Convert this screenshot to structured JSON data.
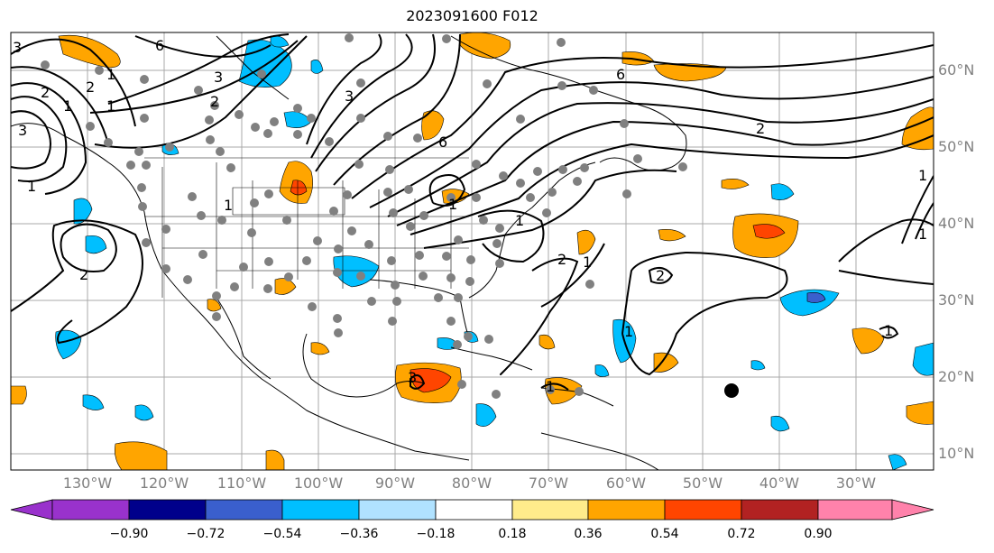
{
  "title": "2023091600 F012",
  "longitude_labels": [
    "130°W",
    "120°W",
    "110°W",
    "100°W",
    "90°W",
    "80°W",
    "70°W",
    "60°W",
    "50°W",
    "40°W",
    "30°W"
  ],
  "latitude_labels": [
    "60°N",
    "50°N",
    "40°N",
    "30°N",
    "20°N",
    "10°N"
  ],
  "colorbar": {
    "tick_labels": [
      "−0.90",
      "−0.72",
      "−0.54",
      "−0.36",
      "−0.18",
      "0.18",
      "0.36",
      "0.54",
      "0.72",
      "0.90"
    ],
    "colors": [
      "#9932CC",
      "#00008B",
      "#3A5FCD",
      "#00BFFF",
      "#B0E2FF",
      "#FFFFFF",
      "#FFEC8B",
      "#FFA500",
      "#FF4500",
      "#B22222",
      "#FF82AB"
    ]
  },
  "contour_labels": [
    "3",
    "6",
    "3",
    "2",
    "1",
    "3",
    "6",
    "6",
    "2",
    "1",
    "1",
    "2",
    "1",
    "2",
    "2",
    "1",
    "1",
    "3",
    "1",
    "1",
    "1",
    "1",
    "1",
    "1",
    "2",
    "1",
    "2",
    "3"
  ],
  "marker": "storm-center-dot"
}
